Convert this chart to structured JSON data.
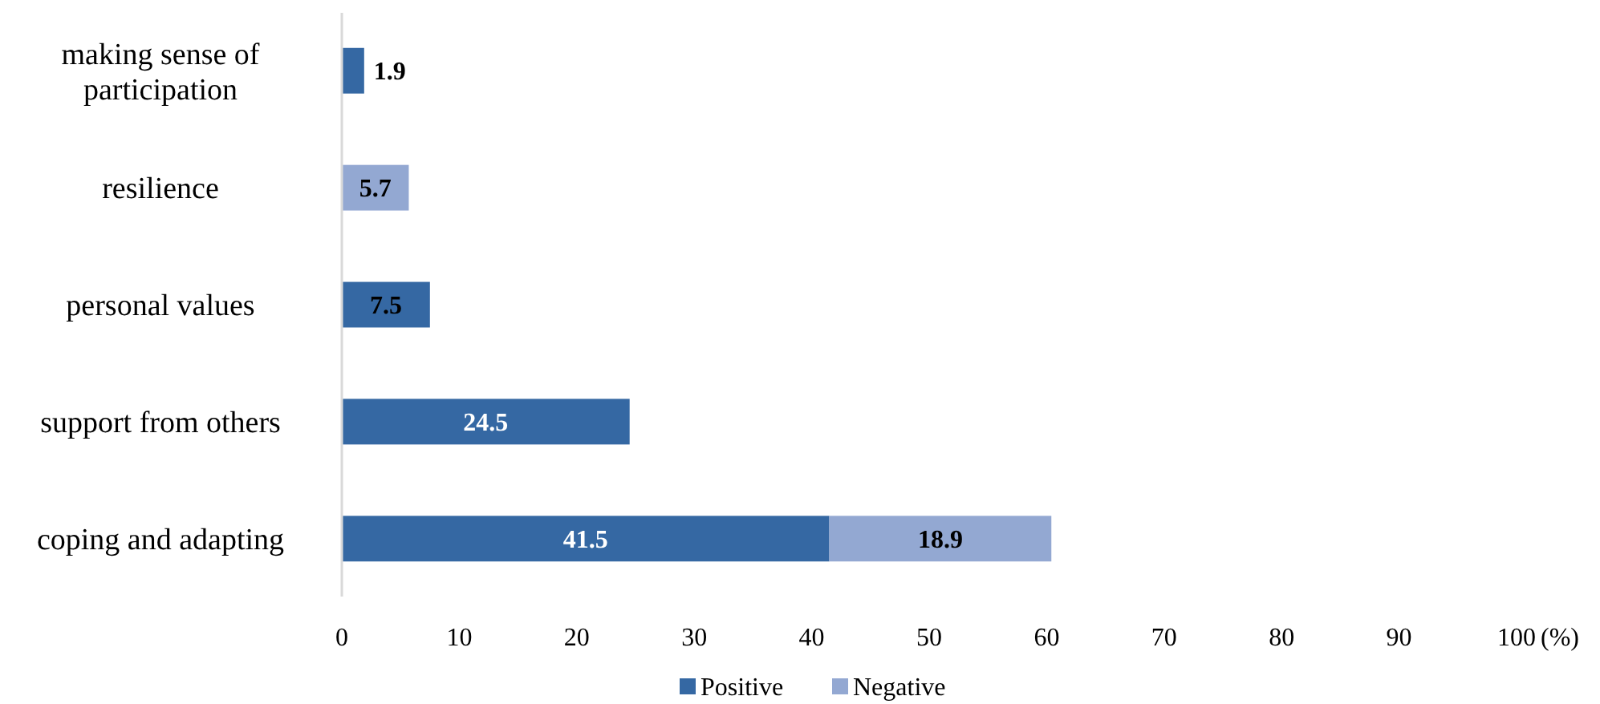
{
  "chart_data": {
    "type": "bar",
    "orientation": "horizontal",
    "stacked": true,
    "categories": [
      "making sense of participation",
      "resilience",
      "personal values",
      "support from others",
      "coping and adapting"
    ],
    "series": [
      {
        "name": "Positive",
        "color": "#3568a3",
        "values": [
          1.9,
          null,
          7.5,
          24.5,
          41.5
        ]
      },
      {
        "name": "Negative",
        "color": "#93a8d2",
        "values": [
          null,
          5.7,
          null,
          null,
          18.9
        ]
      }
    ],
    "xlim": [
      0,
      100
    ],
    "xticks": [
      0,
      10,
      20,
      30,
      40,
      50,
      60,
      70,
      80,
      90,
      100
    ],
    "xlabel": "(%)",
    "data_labels": true,
    "grid": false,
    "legend": "bottom"
  }
}
